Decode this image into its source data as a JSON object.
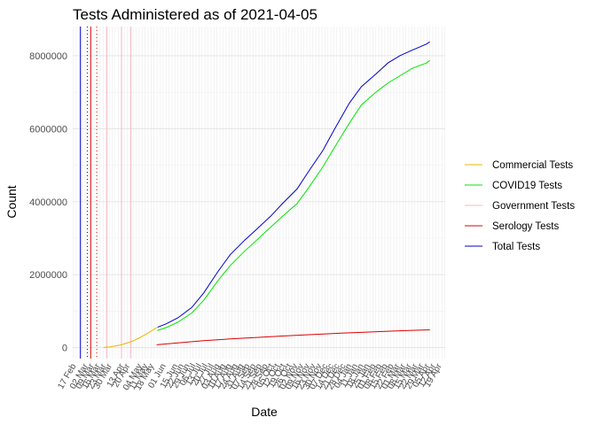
{
  "chart_data": {
    "type": "line",
    "title": "Tests Administered as of 2021-04-05",
    "xlabel": "Date",
    "ylabel": "Count",
    "ylim": [
      -300000,
      8800000
    ],
    "xlim": [
      "2020-02-13",
      "2021-04-23"
    ],
    "yticks": [
      0,
      2000000,
      4000000,
      6000000,
      8000000
    ],
    "ytick_labels": [
      "0",
      "2000000",
      "4000000",
      "6000000",
      "8000000"
    ],
    "grid": true,
    "legend_position": "right",
    "xtick_dates": [
      "2020-02-17",
      "2020-03-02",
      "2020-03-09",
      "2020-03-16",
      "2020-03-23",
      "2020-03-30",
      "2020-04-13",
      "2020-04-20",
      "2020-05-04",
      "2020-05-11",
      "2020-05-18",
      "2020-06-01",
      "2020-06-15",
      "2020-06-22",
      "2020-06-29",
      "2020-07-06",
      "2020-07-13",
      "2020-07-20",
      "2020-07-27",
      "2020-08-03",
      "2020-08-10",
      "2020-08-17",
      "2020-08-24",
      "2020-08-31",
      "2020-09-07",
      "2020-09-14",
      "2020-09-21",
      "2020-09-28",
      "2020-10-05",
      "2020-10-12",
      "2020-10-19",
      "2020-10-26",
      "2020-11-02",
      "2020-11-09",
      "2020-11-16",
      "2020-11-23",
      "2020-11-30",
      "2020-12-07",
      "2020-12-14",
      "2020-12-21",
      "2020-12-28",
      "2021-01-04",
      "2021-01-11",
      "2021-01-18",
      "2021-01-25",
      "2021-02-01",
      "2021-02-08",
      "2021-02-15",
      "2021-02-22",
      "2021-03-01",
      "2021-03-08",
      "2021-03-15",
      "2021-03-22",
      "2021-03-29",
      "2021-04-05",
      "2021-04-12",
      "2021-04-19"
    ],
    "xtick_labels": [
      "17 Feb",
      "02 Mar",
      "09 Mar",
      "16 Mar",
      "23 Mar",
      "30 Mar",
      "13 Apr",
      "20 Apr",
      "04 May",
      "11 May",
      "18 May",
      "01 Jun",
      "15 Jun",
      "22 Jun",
      "29 Jun",
      "06 Jul",
      "13 Jul",
      "20 Jul",
      "27 Jul",
      "03 Aug",
      "10 Aug",
      "17 Aug",
      "24 Aug",
      "31 Aug",
      "07 Sep",
      "14 Sep",
      "21 Sep",
      "28 Sep",
      "05 Oct",
      "12 Oct",
      "19 Oct",
      "26 Oct",
      "02 Nov",
      "09 Nov",
      "16 Nov",
      "23 Nov",
      "30 Nov",
      "07 Dec",
      "14 Dec",
      "21 Dec",
      "28 Dec",
      "04 Jan",
      "11 Jan",
      "18 Jan",
      "25 Jan",
      "01 Feb",
      "08 Feb",
      "15 Feb",
      "22 Feb",
      "01 Mar",
      "08 Mar",
      "15 Mar",
      "22 Mar",
      "29 Mar",
      "05 Apr",
      "12 Apr",
      "19 Apr"
    ],
    "series": [
      {
        "name": "Commercial Tests",
        "color": "#e6b800",
        "x": [
          "2020-03-20",
          "2020-03-27",
          "2020-04-03",
          "2020-04-10",
          "2020-04-17",
          "2020-04-24",
          "2020-05-01",
          "2020-05-08",
          "2020-05-15",
          "2020-05-21"
        ],
        "values": [
          5000,
          20000,
          45000,
          80000,
          130000,
          190000,
          270000,
          360000,
          460000,
          550000
        ]
      },
      {
        "name": "COVID19 Tests",
        "color": "#00e600",
        "x": [
          "2020-05-22",
          "2020-06-01",
          "2020-06-15",
          "2020-07-01",
          "2020-07-15",
          "2020-08-01",
          "2020-08-15",
          "2020-09-01",
          "2020-09-15",
          "2020-10-01",
          "2020-10-15",
          "2020-11-01",
          "2020-11-15",
          "2020-12-01",
          "2020-12-15",
          "2021-01-01",
          "2021-01-15",
          "2021-02-01",
          "2021-02-15",
          "2021-03-01",
          "2021-03-15",
          "2021-04-01",
          "2021-04-05"
        ],
        "values": [
          470000,
          550000,
          700000,
          950000,
          1300000,
          1850000,
          2250000,
          2650000,
          2950000,
          3300000,
          3600000,
          3950000,
          4400000,
          4950000,
          5500000,
          6150000,
          6650000,
          7000000,
          7250000,
          7450000,
          7650000,
          7800000,
          7870000
        ]
      },
      {
        "name": "Government Tests",
        "color": "#ffb6c1",
        "vlines": [
          "2020-03-24",
          "2020-04-10",
          "2020-04-21"
        ]
      },
      {
        "name": "Serology Tests",
        "color": "#dd0000",
        "vlines": [
          "2020-03-05"
        ],
        "x": [
          "2020-05-21",
          "2020-06-15",
          "2020-07-15",
          "2020-08-15",
          "2020-09-15",
          "2020-10-15",
          "2020-11-15",
          "2020-12-15",
          "2021-01-15",
          "2021-02-15",
          "2021-03-15",
          "2021-04-05"
        ],
        "values": [
          80000,
          130000,
          190000,
          240000,
          280000,
          320000,
          355000,
          390000,
          420000,
          450000,
          475000,
          490000
        ]
      },
      {
        "name": "Total Tests",
        "color": "#0000cc",
        "vlines": [
          "2020-02-22"
        ],
        "x": [
          "2020-05-22",
          "2020-06-01",
          "2020-06-15",
          "2020-07-01",
          "2020-07-15",
          "2020-08-01",
          "2020-08-15",
          "2020-09-01",
          "2020-09-15",
          "2020-10-01",
          "2020-10-15",
          "2020-11-01",
          "2020-11-15",
          "2020-12-01",
          "2020-12-15",
          "2021-01-01",
          "2021-01-15",
          "2021-02-01",
          "2021-02-15",
          "2021-03-01",
          "2021-03-15",
          "2021-04-01",
          "2021-04-05"
        ],
        "values": [
          560000,
          650000,
          820000,
          1100000,
          1500000,
          2100000,
          2550000,
          2950000,
          3250000,
          3600000,
          3950000,
          4350000,
          4850000,
          5400000,
          6000000,
          6700000,
          7150000,
          7500000,
          7800000,
          8000000,
          8150000,
          8320000,
          8380000
        ]
      }
    ],
    "extra_vlines": [
      {
        "date": "2020-03-01",
        "color": "#000080",
        "style": "dotted"
      },
      {
        "date": "2020-03-12",
        "color": "#dd0000",
        "style": "dotted"
      }
    ]
  }
}
